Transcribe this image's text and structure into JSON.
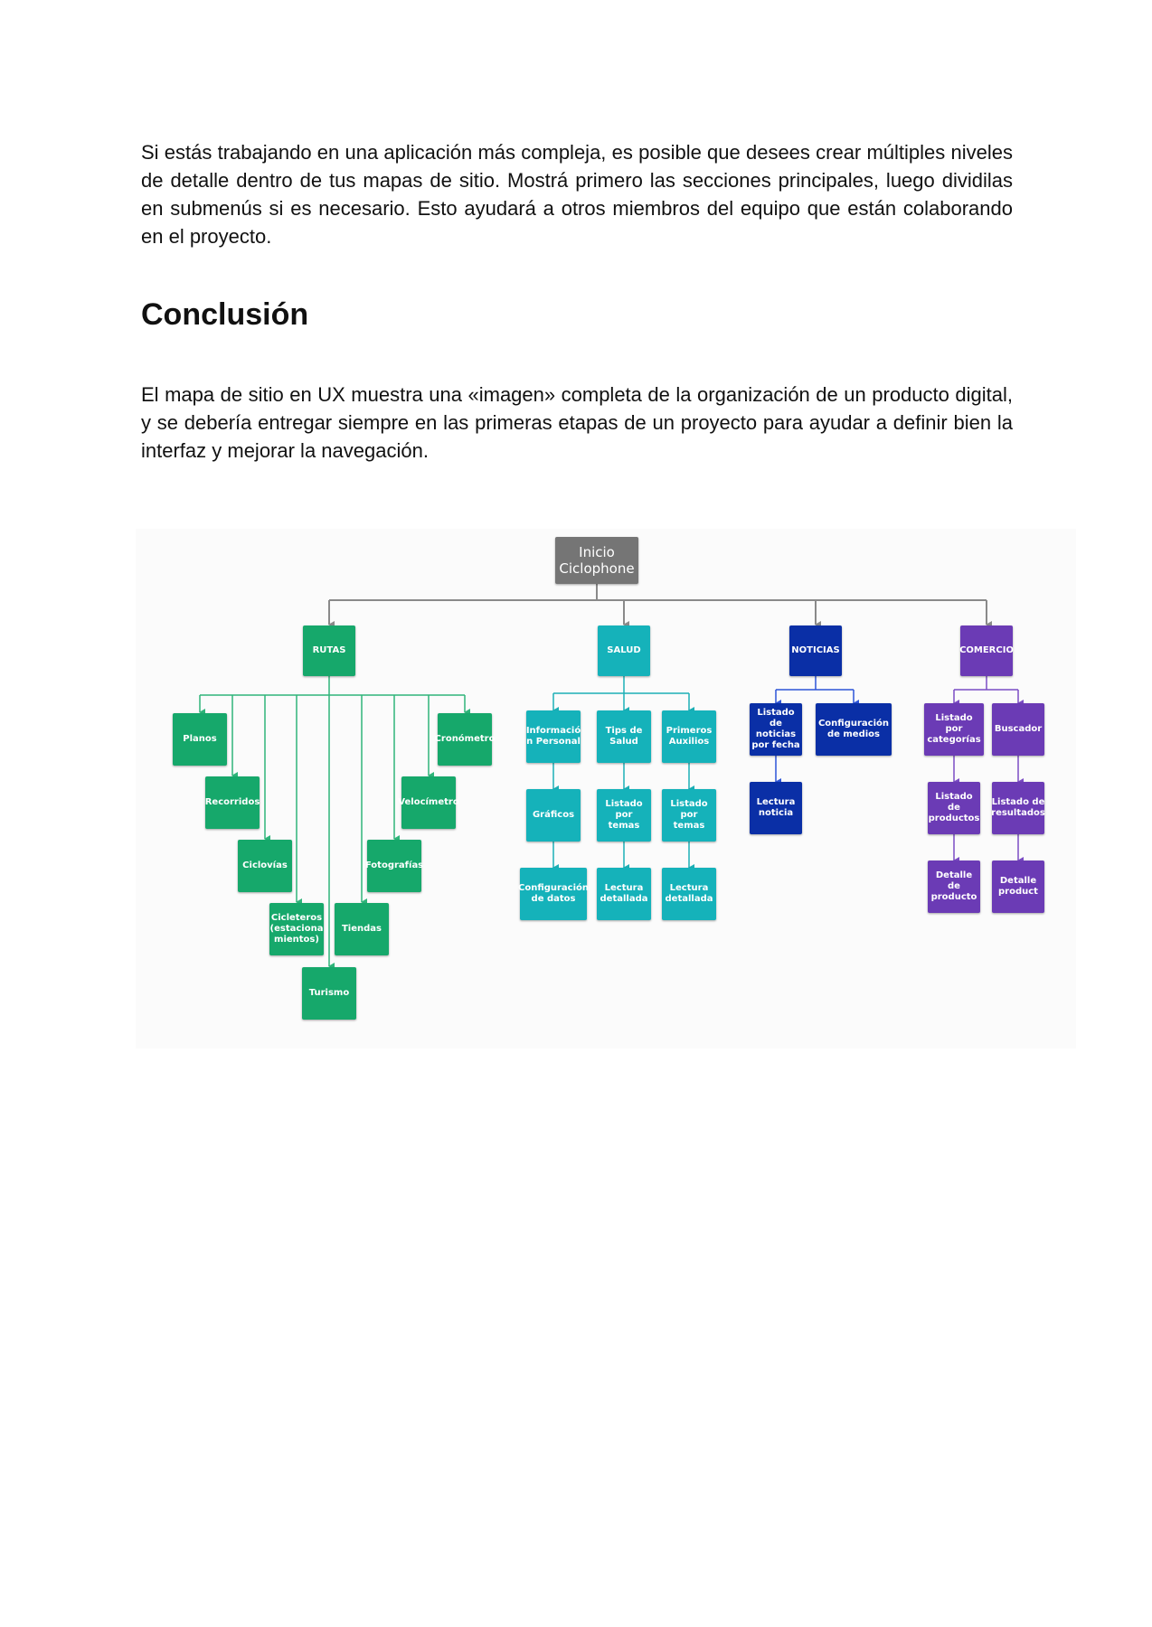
{
  "text": {
    "paragraph_1": "Si estás trabajando en una aplicación más compleja, es posible que desees crear múltiples niveles de detalle dentro de tus mapas de sitio. Mostrá primero las secciones principales, luego dividilas en submenús si es necesario. Esto ayudará a otros miembros del equipo que están colaborando en el proyecto.",
    "heading": "Conclusión",
    "paragraph_2": "El mapa de sitio en UX muestra una «imagen» completa de la organización de un producto digital, y se debería entregar siempre en las primeras etapas de un proyecto para ayudar a definir bien la interfaz y mejorar la navegación."
  },
  "colors": {
    "root": "#757575",
    "rutas": "#16a86b",
    "salud": "#15b2ba",
    "noticias": "#0a2fa6",
    "comercio": "#6b3bb5",
    "line_gray": "#8a8a8a",
    "line_green": "#2fb57a",
    "line_teal": "#1cb0b6",
    "line_blue": "#2d55d8",
    "line_purple": "#7b4cc4"
  },
  "sitemap": {
    "root": {
      "label": "Inicio\nCiclophone"
    },
    "sections": {
      "rutas": {
        "label": "RUTAS",
        "children": [
          "Planos",
          "Recorridos",
          "Ciclovías",
          "Cicleteros\n(estaciona\nmientos)",
          "Turismo",
          "Tiendas",
          "Fotografías",
          "Velocímetro",
          "Cronómetro"
        ]
      },
      "salud": {
        "label": "SALUD",
        "columns": [
          [
            "Informació\nn Personal",
            "Gráficos",
            "Configuración\nde datos"
          ],
          [
            "Tips de\nSalud",
            "Listado por\ntemas",
            "Lectura\ndetallada"
          ],
          [
            "Primeros\nAuxilios",
            "Listado por\ntemas",
            "Lectura\ndetallada"
          ]
        ]
      },
      "noticias": {
        "label": "NOTICIAS",
        "columns": [
          [
            "Listado de\nnoticias\npor fecha",
            "Lectura\nnoticia"
          ],
          [
            "Configuración\nde medios"
          ]
        ]
      },
      "comercio": {
        "label": "COMERCIO",
        "columns": [
          [
            "Listado por\ncategorías",
            "Listado de\nproductos",
            "Detalle de\nproducto"
          ],
          [
            "Buscador",
            "Listado de\nresultados",
            "Detalle\nproduct"
          ]
        ]
      }
    }
  }
}
